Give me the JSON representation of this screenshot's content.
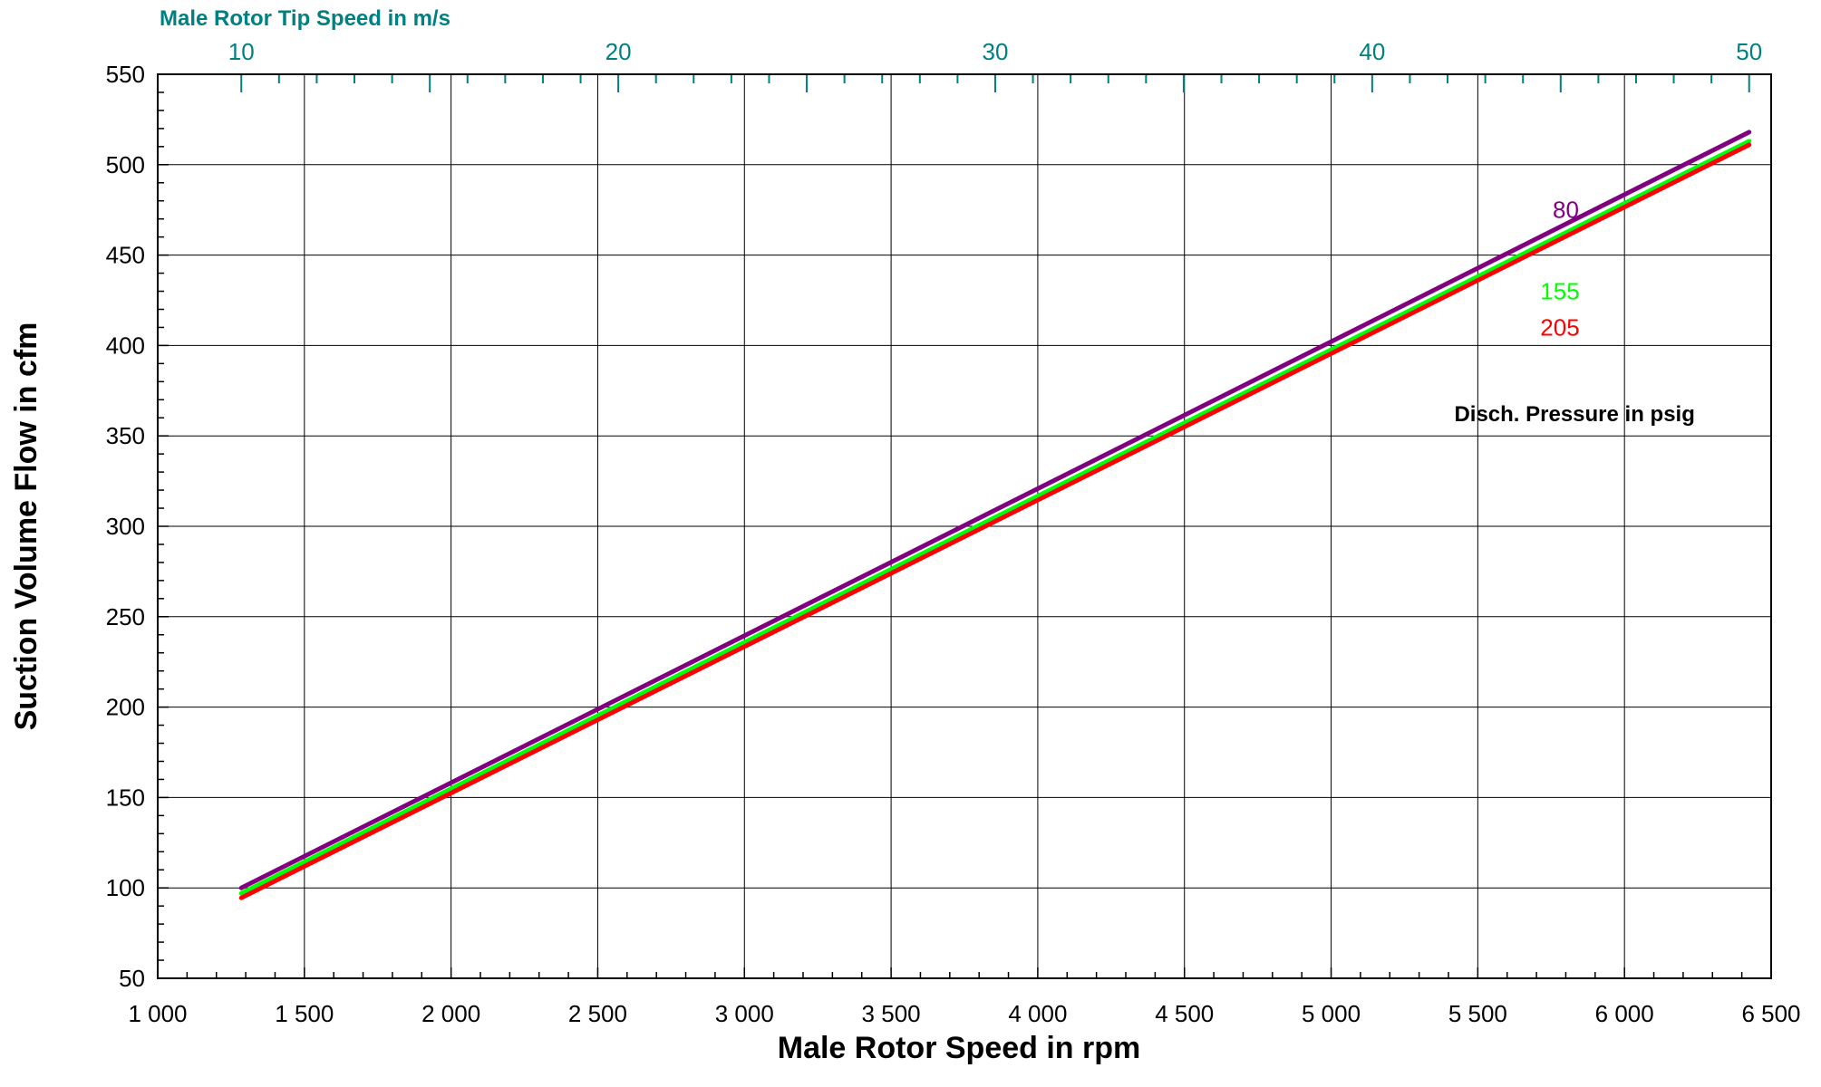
{
  "chart_data": {
    "type": "line",
    "title": "",
    "xlabel": "Male Rotor Speed in rpm",
    "ylabel": "Suction Volume Flow in cfm",
    "xlim": [
      1000,
      6500
    ],
    "ylim": [
      50,
      550
    ],
    "x_ticks": [
      1000,
      1500,
      2000,
      2500,
      3000,
      3500,
      4000,
      4500,
      5000,
      5500,
      6000,
      6500
    ],
    "x_tick_labels": [
      "1 000",
      "1 500",
      "2 000",
      "2 500",
      "3 000",
      "3 500",
      "4 000",
      "4 500",
      "5 000",
      "5 500",
      "6 000",
      "6 500"
    ],
    "y_ticks": [
      50,
      100,
      150,
      200,
      250,
      300,
      350,
      400,
      450,
      500,
      550
    ],
    "y_tick_labels": [
      "50",
      "100",
      "150",
      "200",
      "250",
      "300",
      "350",
      "400",
      "450",
      "500",
      "550"
    ],
    "grid": true,
    "secondary_x_axis": {
      "label": "Male Rotor Tip Speed in m/s",
      "position": "top",
      "color": "#008080",
      "ticks": [
        10,
        20,
        30,
        40,
        50
      ],
      "tick_labels": [
        "10",
        "20",
        "30",
        "40",
        "50"
      ],
      "rpm_at_ticks": [
        1285,
        2570,
        3855,
        5140,
        6425
      ]
    },
    "legend_title": "Disch. Pressure in psig",
    "series": [
      {
        "name": "80",
        "color": "#800080",
        "x": [
          1285,
          6425
        ],
        "y": [
          100,
          518
        ]
      },
      {
        "name": "155",
        "color": "#00ff00",
        "x": [
          1285,
          6425
        ],
        "y": [
          97,
          513
        ]
      },
      {
        "name": "205",
        "color": "#ff0000",
        "x": [
          1285,
          6425
        ],
        "y": [
          94.5,
          511
        ]
      }
    ]
  }
}
